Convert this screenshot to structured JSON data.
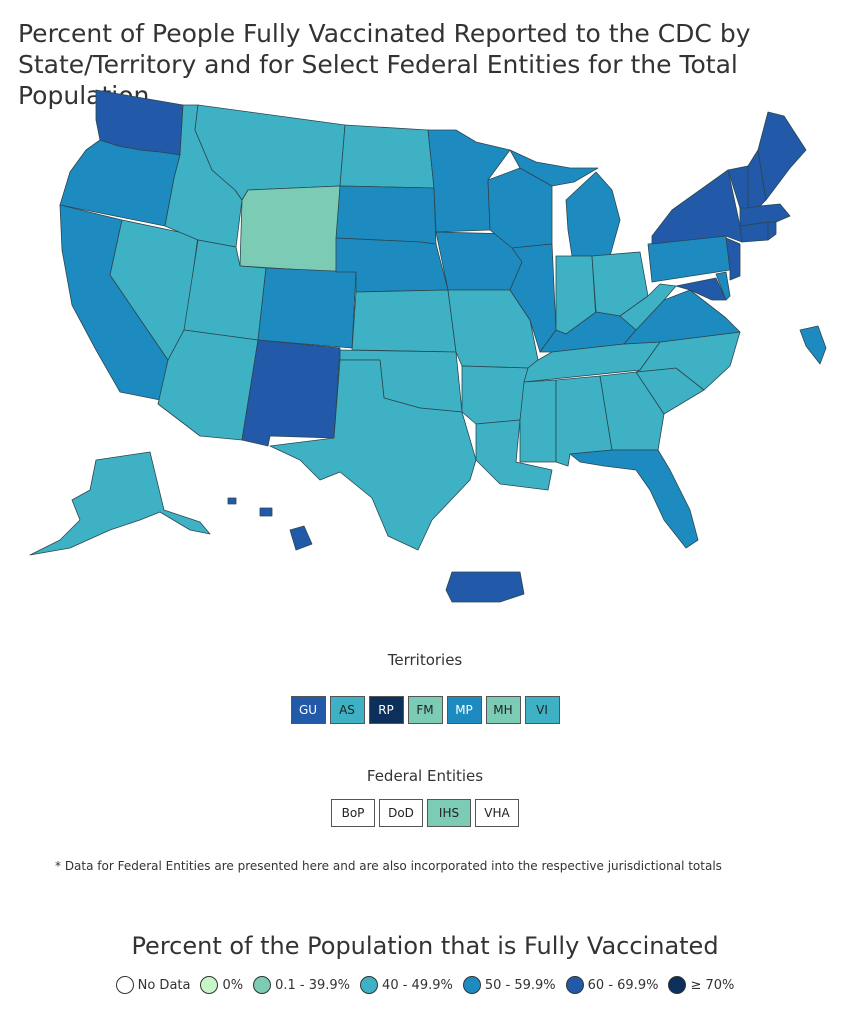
{
  "title": "Percent of People Fully Vaccinated Reported to the CDC by State/Territory and for Select Federal Entities for the Total Population",
  "colors": {
    "no_data": "#ffffff",
    "zero": "#c8f5c8",
    "c0_40": "#7ccbb5",
    "c40_50": "#3eb2c4",
    "c50_60": "#1e8bc0",
    "c60_70": "#2259a8",
    "c70": "#0c2f5c"
  },
  "territories": {
    "label": "Territories",
    "items": [
      {
        "code": "GU",
        "fill": "#2259a8",
        "text": "#ffffff"
      },
      {
        "code": "AS",
        "fill": "#3eb2c4",
        "text": "#222222"
      },
      {
        "code": "RP",
        "fill": "#0c2f5c",
        "text": "#ffffff"
      },
      {
        "code": "FM",
        "fill": "#7ccbb5",
        "text": "#222222"
      },
      {
        "code": "MP",
        "fill": "#1e8bc0",
        "text": "#ffffff"
      },
      {
        "code": "MH",
        "fill": "#7ccbb5",
        "text": "#222222"
      },
      {
        "code": "VI",
        "fill": "#3eb2c4",
        "text": "#222222"
      }
    ]
  },
  "federal_entities": {
    "label": "Federal Entities",
    "items": [
      {
        "code": "BoP",
        "fill": "#ffffff",
        "text": "#222222"
      },
      {
        "code": "DoD",
        "fill": "#ffffff",
        "text": "#222222"
      },
      {
        "code": "IHS",
        "fill": "#7ccbb5",
        "text": "#222222"
      },
      {
        "code": "VHA",
        "fill": "#ffffff",
        "text": "#222222"
      }
    ]
  },
  "footnote": "* Data for Federal Entities are presented here and are also incorporated into the respective jurisdictional totals",
  "legend": {
    "title": "Percent of the Population that is Fully Vaccinated",
    "items": [
      {
        "label": "No Data",
        "color": "#ffffff"
      },
      {
        "label": "0%",
        "color": "#c8f5c8"
      },
      {
        "label": "0.1 - 39.9%",
        "color": "#7ccbb5"
      },
      {
        "label": "40 - 49.9%",
        "color": "#3eb2c4"
      },
      {
        "label": "50 - 59.9%",
        "color": "#1e8bc0"
      },
      {
        "label": "60 - 69.9%",
        "color": "#2259a8"
      },
      {
        "label": "≥ 70%",
        "color": "#0c2f5c"
      }
    ]
  },
  "map_regions": {
    "WA": "c60_70",
    "OR": "c50_60",
    "CA": "c50_60",
    "ID": "c40_50",
    "NV": "c40_50",
    "MT": "c40_50",
    "WY": "c0_40",
    "UT": "c40_50",
    "AZ": "c40_50",
    "CO": "c50_60",
    "NM": "c60_70",
    "ND": "c40_50",
    "SD": "c50_60",
    "NE": "c50_60",
    "KS": "c40_50",
    "OK": "c40_50",
    "TX": "c40_50",
    "MN": "c50_60",
    "IA": "c50_60",
    "MO": "c40_50",
    "AR": "c40_50",
    "LA": "c40_50",
    "WI": "c50_60",
    "IL": "c50_60",
    "MI": "c50_60",
    "IN": "c40_50",
    "OH": "c40_50",
    "KY": "c50_60",
    "TN": "c40_50",
    "MS": "c40_50",
    "AL": "c40_50",
    "GA": "c40_50",
    "FL": "c50_60",
    "SC": "c40_50",
    "NC": "c40_50",
    "VA": "c50_60",
    "WV": "c40_50",
    "PA": "c50_60",
    "NY": "c60_70",
    "MD": "c60_70",
    "DE": "c50_60",
    "NJ": "c60_70",
    "CT": "c60_70",
    "RI": "c60_70",
    "MA": "c60_70",
    "VT": "c60_70",
    "NH": "c60_70",
    "ME": "c60_70",
    "AK": "c40_50",
    "HI": "c60_70",
    "PR": "c60_70"
  }
}
